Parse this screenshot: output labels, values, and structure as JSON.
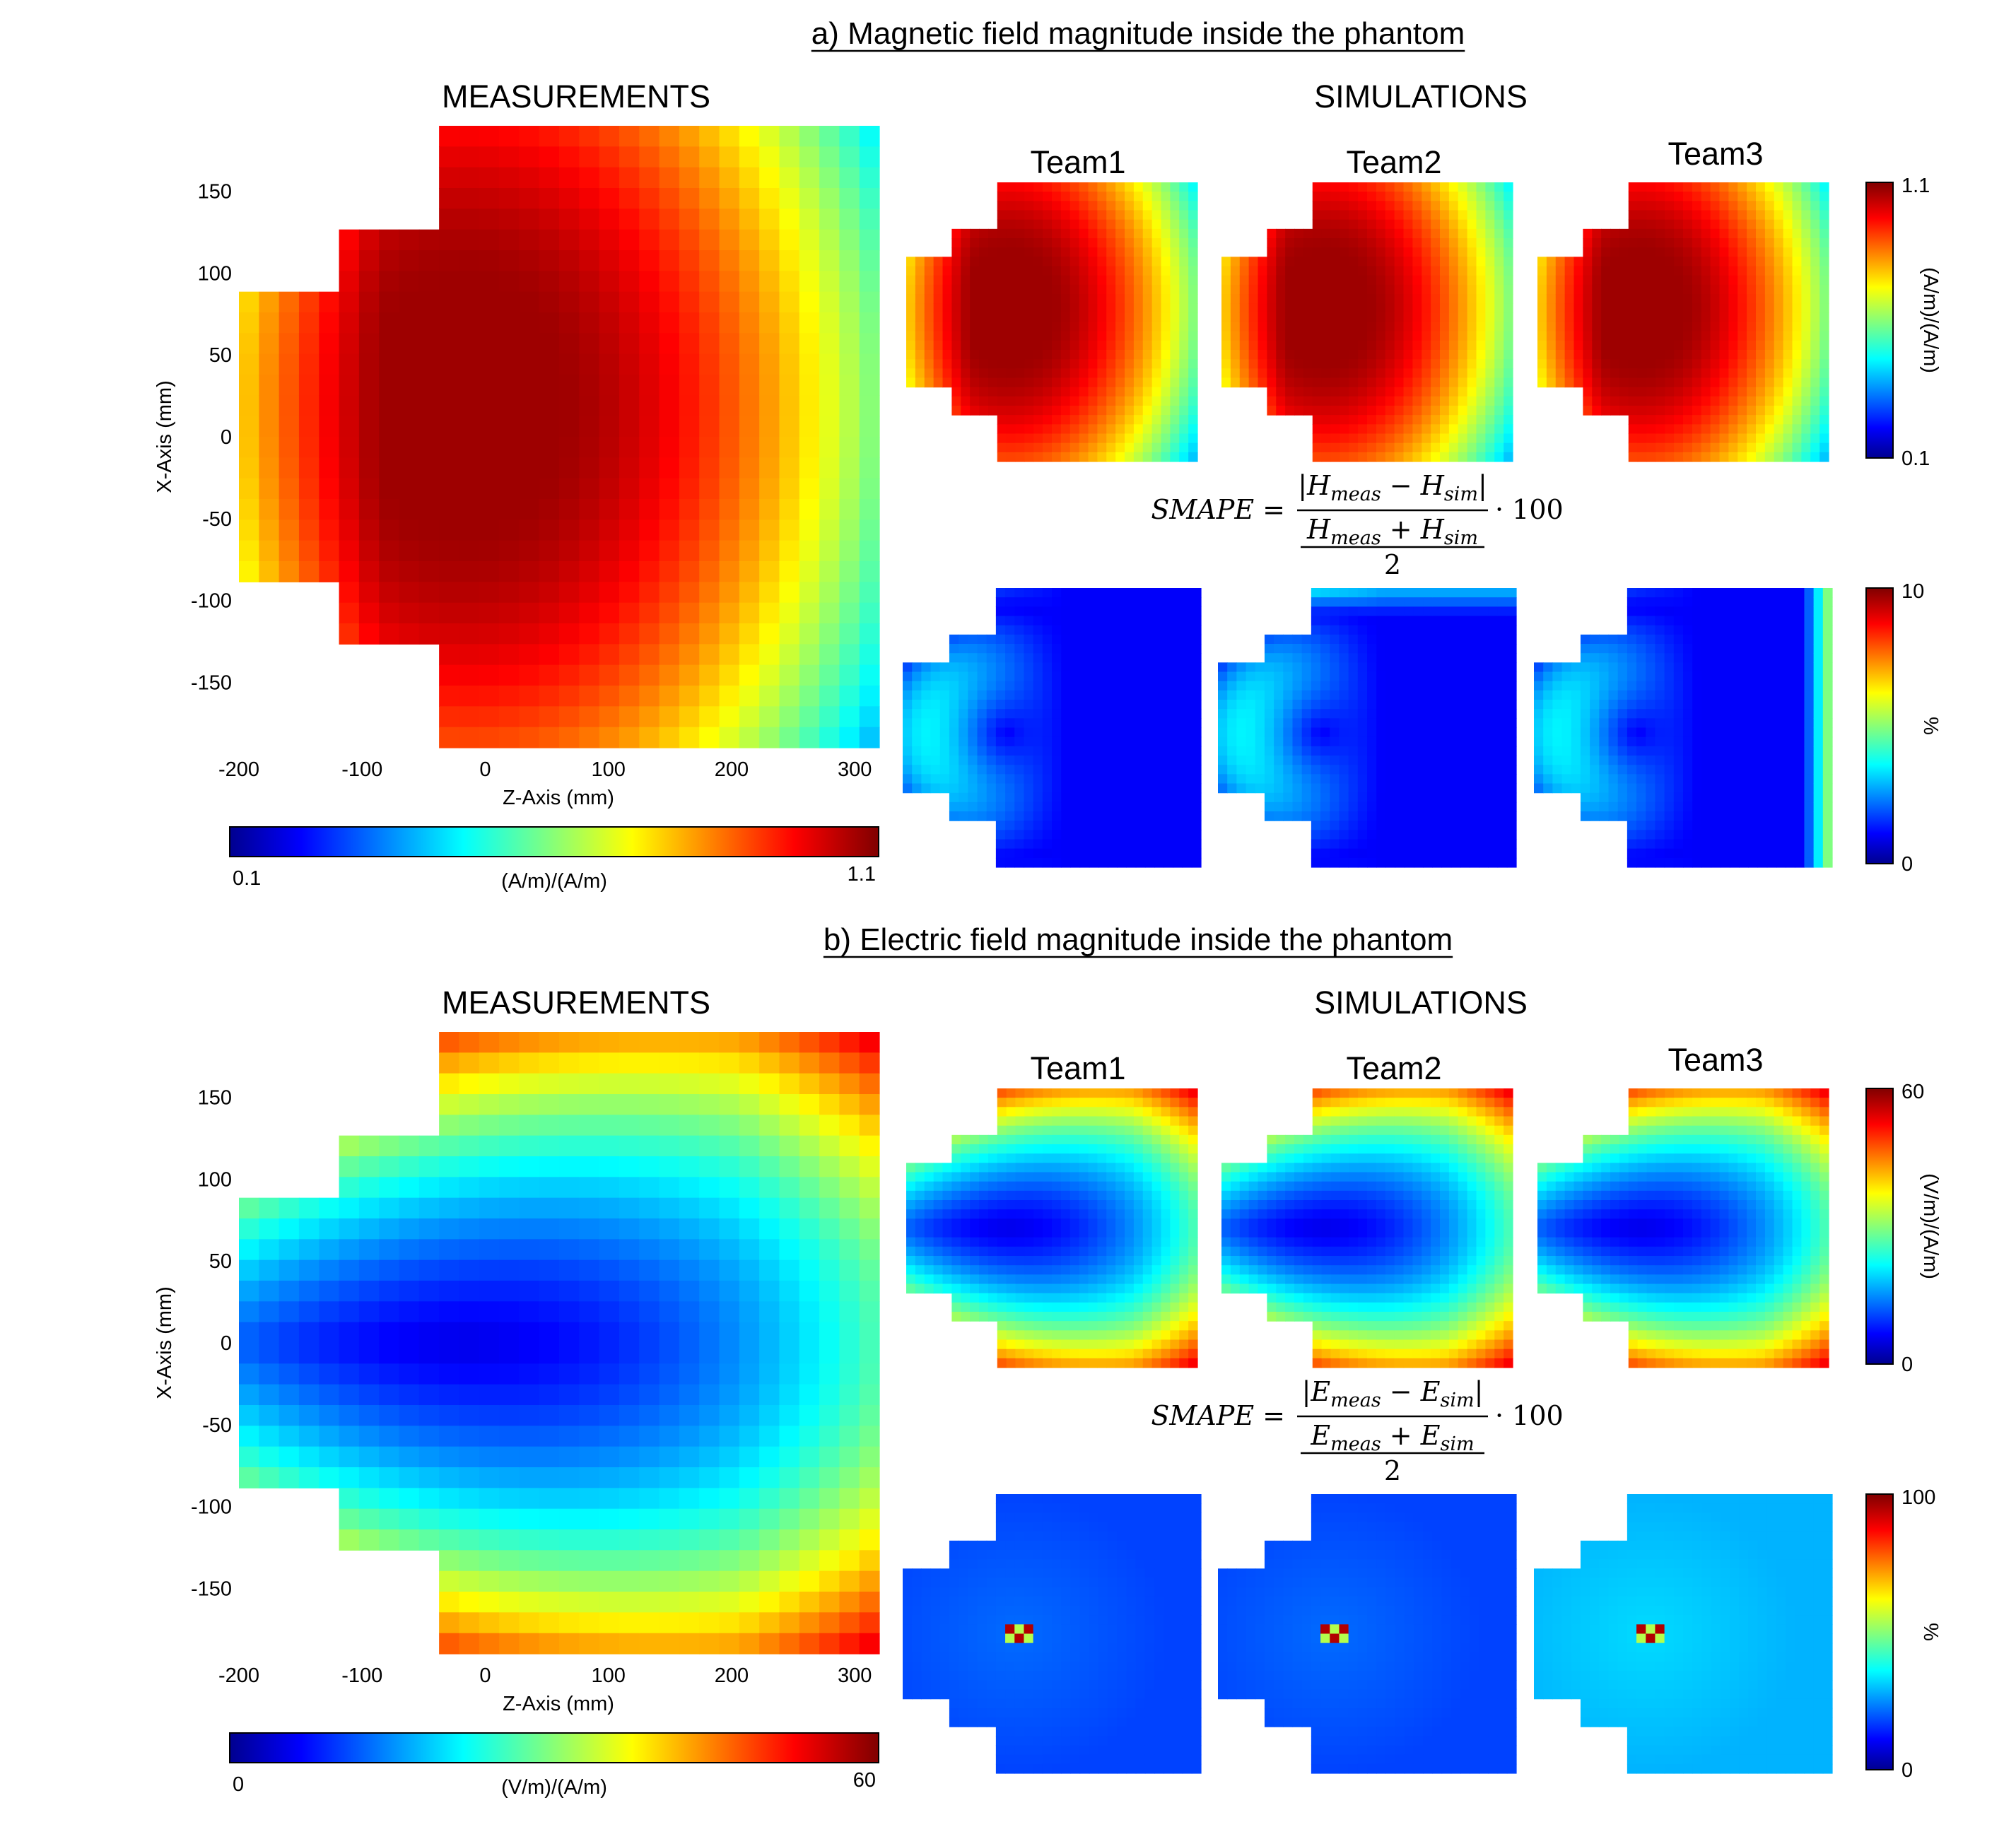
{
  "chart_data": {
    "type": "heatmap",
    "colormap": "jet",
    "panels": [
      {
        "id": "a",
        "title": "a) Magnetic field magnitude inside the phantom",
        "measurements_label": "MEASUREMENTS",
        "simulations_label": "SIMULATIONS",
        "teams": [
          "Team1",
          "Team2",
          "Team3"
        ],
        "xlabel": "Z-Axis (mm)",
        "ylabel": "X-Axis (mm)",
        "x_ticks": [
          "-200",
          "-100",
          "0",
          "100",
          "200",
          "300"
        ],
        "y_ticks": [
          "150",
          "100",
          "50",
          "0",
          "-50",
          "-100",
          "-150"
        ],
        "xlim": [
          -200,
          320
        ],
        "ylim": [
          -190,
          190
        ],
        "field_colorbar": {
          "min": "0.1",
          "max": "1.1",
          "label": "(A/m)/(A/m)"
        },
        "smape_colorbar": {
          "min": "0",
          "max": "10",
          "label": "%"
        },
        "formula": {
          "lhs": "SMAPE",
          "num_a": "H",
          "num_a_sub": "meas",
          "num_b": "H",
          "num_b_sub": "sim",
          "den_a": "H",
          "den_a_sub": "meas",
          "den_b": "H",
          "den_b_sub": "sim",
          "den_div": "2",
          "factor": "· 100"
        }
      },
      {
        "id": "b",
        "title": "b) Electric field magnitude inside the phantom",
        "measurements_label": "MEASUREMENTS",
        "simulations_label": "SIMULATIONS",
        "teams": [
          "Team1",
          "Team2",
          "Team3"
        ],
        "xlabel": "Z-Axis (mm)",
        "ylabel": "X-Axis (mm)",
        "x_ticks": [
          "-200",
          "-100",
          "0",
          "100",
          "200",
          "300"
        ],
        "y_ticks": [
          "150",
          "100",
          "50",
          "0",
          "-50",
          "-100",
          "-150"
        ],
        "xlim": [
          -200,
          320
        ],
        "ylim": [
          -190,
          190
        ],
        "field_colorbar": {
          "min": "0",
          "max": "60",
          "label": "(V/m)/(A/m)"
        },
        "smape_colorbar": {
          "min": "0",
          "max": "100",
          "label": "%"
        },
        "formula": {
          "lhs": "SMAPE",
          "num_a": "E",
          "num_a_sub": "meas",
          "num_b": "E",
          "num_b_sub": "sim",
          "den_a": "E",
          "den_a_sub": "meas",
          "den_b": "E",
          "den_b_sub": "sim",
          "den_div": "2",
          "factor": "· 100"
        }
      }
    ]
  }
}
